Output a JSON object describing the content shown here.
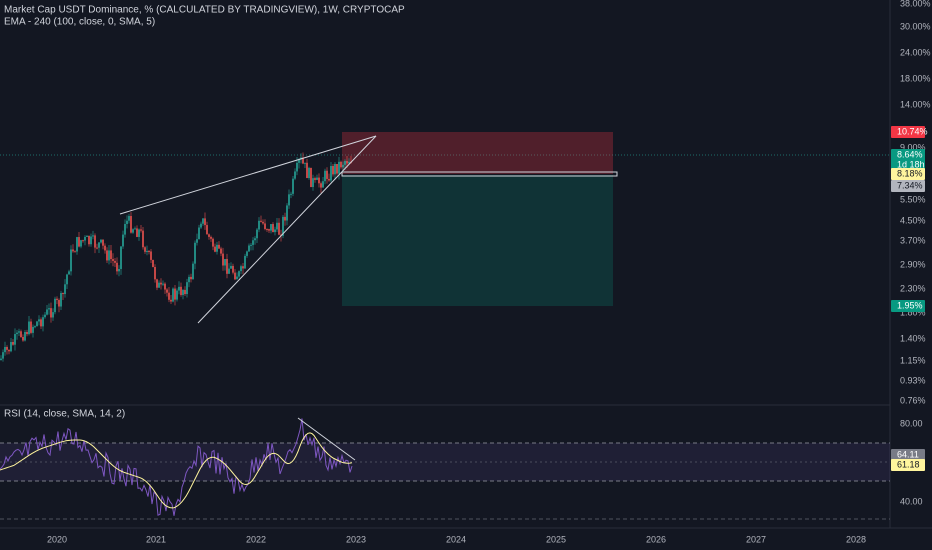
{
  "header": {
    "title": "Market Cap USDT Dominance, % (CALCULATED BY TRADINGVIEW), 1W, CRYPTOCAP",
    "indicator": "EMA - 240 (100, close, 0, SMA, 5)"
  },
  "price_axis": [
    "38.00%",
    "30.00%",
    "24.00%",
    "18.00%",
    "14.00%",
    "9.00%",
    "5.50%",
    "4.50%",
    "3.70%",
    "2.90%",
    "2.30%",
    "1.80%",
    "1.40%",
    "1.15%",
    "0.93%",
    "0.76%"
  ],
  "price_tags": {
    "target": "10.74%",
    "last": "8.64%",
    "countdown": "1d 18h",
    "entry": "8.18%",
    "ema": "7.34%",
    "stop": "1.95%"
  },
  "rsi": {
    "label": "RSI (14, close, SMA, 14, 2)",
    "axis": [
      "80.00",
      "40.00"
    ],
    "tags": {
      "rsi": "64.11",
      "sma": "61.18"
    }
  },
  "time_axis": [
    "2020",
    "2021",
    "2022",
    "2023",
    "2024",
    "2025",
    "2026",
    "2027",
    "2028"
  ]
}
